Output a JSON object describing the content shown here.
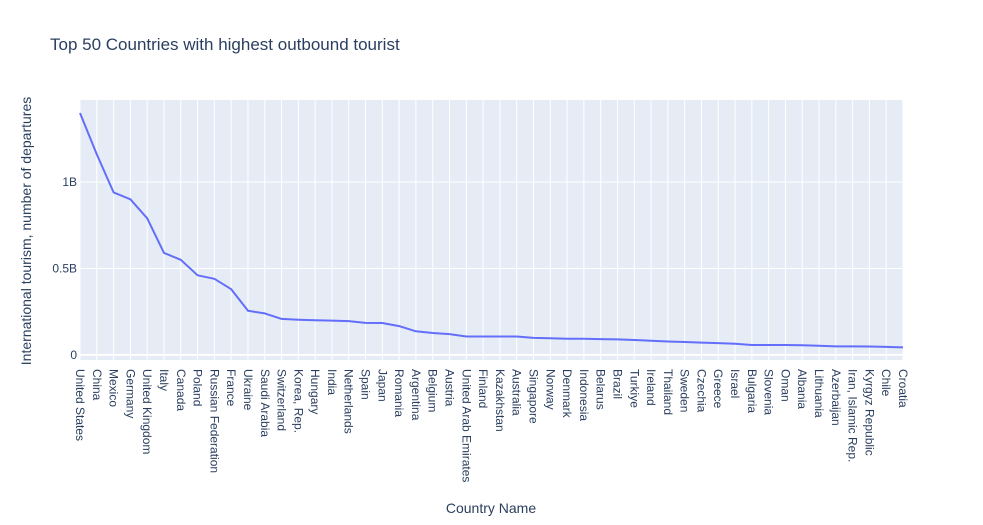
{
  "chart_data": {
    "type": "line",
    "title": "Top 50 Countries with highest outbound tourist",
    "xlabel": "Country Name",
    "ylabel": "International tourism, number of departures",
    "categories": [
      "United States",
      "China",
      "Mexico",
      "Germany",
      "United Kingdom",
      "Italy",
      "Canada",
      "Poland",
      "Russian Federation",
      "France",
      "Ukraine",
      "Saudi Arabia",
      "Switzerland",
      "Korea, Rep.",
      "Hungary",
      "India",
      "Netherlands",
      "Spain",
      "Japan",
      "Romania",
      "Argentina",
      "Belgium",
      "Austria",
      "United Arab Emirates",
      "Finland",
      "Kazakhstan",
      "Australia",
      "Singapore",
      "Norway",
      "Denmark",
      "Indonesia",
      "Belarus",
      "Brazil",
      "Turkiye",
      "Ireland",
      "Thailand",
      "Sweden",
      "Czechia",
      "Greece",
      "Israel",
      "Bulgaria",
      "Slovenia",
      "Oman",
      "Albania",
      "Lithuania",
      "Azerbaijan",
      "Iran, Islamic Rep.",
      "Kyrgyz Republic",
      "Chile",
      "Croatia"
    ],
    "series": [
      {
        "values": [
          1400000000,
          1160000000,
          940000000,
          900000000,
          790000000,
          590000000,
          550000000,
          460000000,
          440000000,
          380000000,
          255000000,
          240000000,
          208000000,
          203000000,
          200000000,
          198000000,
          195000000,
          185000000,
          184000000,
          166000000,
          136000000,
          126000000,
          120000000,
          106000000,
          106000000,
          106000000,
          106000000,
          98000000,
          96000000,
          93000000,
          93000000,
          91000000,
          89000000,
          86000000,
          81000000,
          77000000,
          74000000,
          71000000,
          68000000,
          64000000,
          57000000,
          57000000,
          57000000,
          55000000,
          52000000,
          49000000,
          49000000,
          48000000,
          46000000,
          43000000
        ],
        "color": "#636efa"
      }
    ],
    "yticks": [
      {
        "value": 0,
        "label": "0"
      },
      {
        "value": 500000000,
        "label": "0.5B"
      },
      {
        "value": 1000000000,
        "label": "1B"
      }
    ],
    "ylim": [
      -30000000,
      1475000000
    ],
    "grid": true,
    "plot_bgcolor": "#e5ecf6",
    "grid_color": "#ffffff",
    "text_color": "#2a3f5f"
  }
}
